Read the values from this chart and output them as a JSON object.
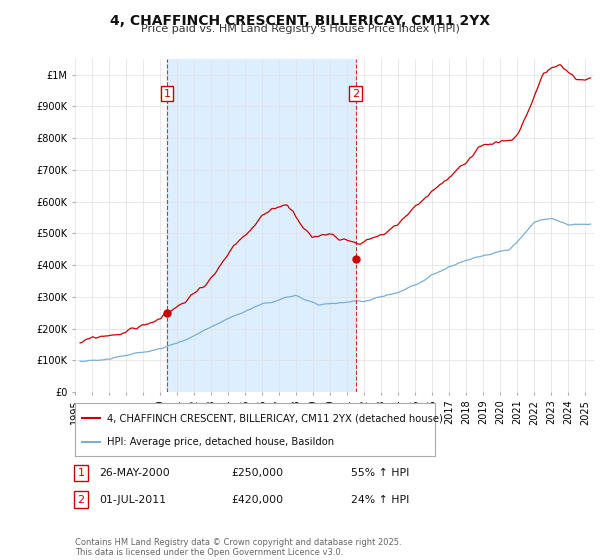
{
  "title": "4, CHAFFINCH CRESCENT, BILLERICAY, CM11 2YX",
  "subtitle": "Price paid vs. HM Land Registry's House Price Index (HPI)",
  "red_label": "4, CHAFFINCH CRESCENT, BILLERICAY, CM11 2YX (detached house)",
  "blue_label": "HPI: Average price, detached house, Basildon",
  "transaction1_date": "26-MAY-2000",
  "transaction1_price": "£250,000",
  "transaction1_hpi": "55% ↑ HPI",
  "transaction2_date": "01-JUL-2011",
  "transaction2_price": "£420,000",
  "transaction2_hpi": "24% ↑ HPI",
  "copyright": "Contains HM Land Registry data © Crown copyright and database right 2025.\nThis data is licensed under the Open Government Licence v3.0.",
  "red_color": "#cc0000",
  "blue_color": "#7aaed6",
  "shade_color": "#ddeeff",
  "annotation_box_color": "#cc0000",
  "background_color": "#ffffff",
  "grid_color": "#e0e0e0",
  "ylim": [
    0,
    1050000
  ],
  "yticks": [
    0,
    100000,
    200000,
    300000,
    400000,
    500000,
    600000,
    700000,
    800000,
    900000,
    1000000
  ],
  "ytick_labels": [
    "£0",
    "£100K",
    "£200K",
    "£300K",
    "£400K",
    "£500K",
    "£600K",
    "£700K",
    "£800K",
    "£900K",
    "£1M"
  ],
  "xlim_start": 1995.3,
  "xlim_end": 2025.5,
  "xticks": [
    1995,
    1996,
    1997,
    1998,
    1999,
    2000,
    2001,
    2002,
    2003,
    2004,
    2005,
    2006,
    2007,
    2008,
    2009,
    2010,
    2011,
    2012,
    2013,
    2014,
    2015,
    2016,
    2017,
    2018,
    2019,
    2020,
    2021,
    2022,
    2023,
    2024,
    2025
  ],
  "transaction1_x": 2000.41,
  "transaction1_y": 250000,
  "transaction2_x": 2011.5,
  "transaction2_y": 420000,
  "vline1_x": 2000.41,
  "vline2_x": 2011.5,
  "title_fontsize": 10,
  "subtitle_fontsize": 8,
  "tick_fontsize": 7,
  "legend_fontsize": 7.5
}
